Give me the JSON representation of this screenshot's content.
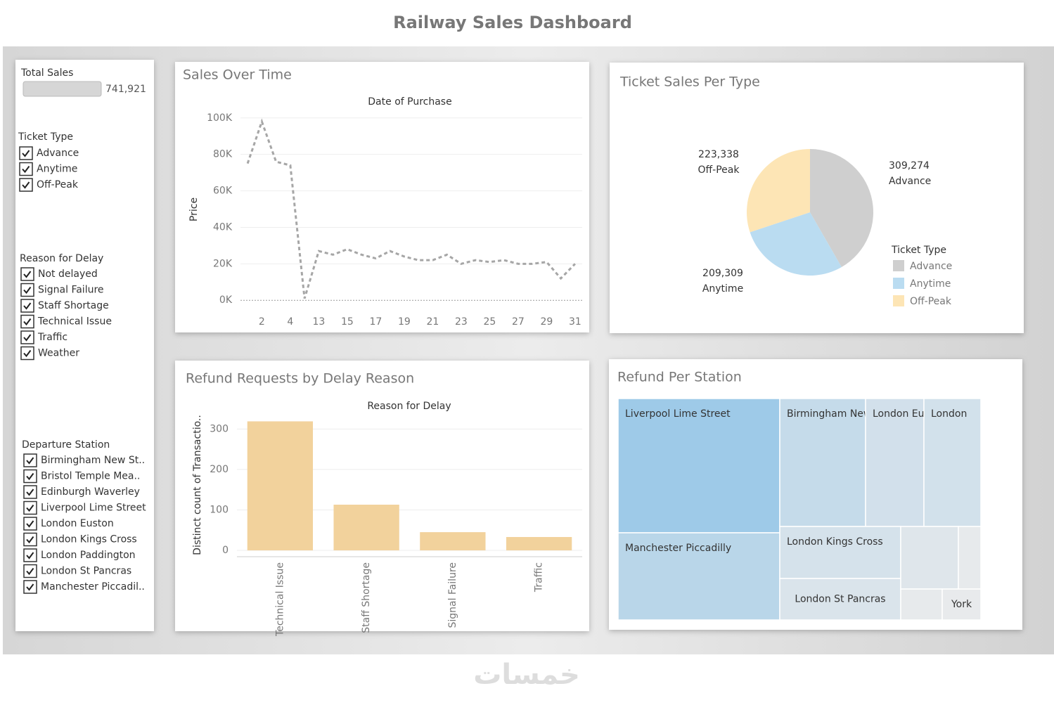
{
  "title": "Railway Sales Dashboard",
  "watermark": "خمسات",
  "filters": {
    "total_sales": {
      "label": "Total Sales",
      "value": "741,921"
    },
    "ticket_type": {
      "title": "Ticket Type",
      "items": [
        "Advance",
        "Anytime",
        "Off-Peak"
      ]
    },
    "reason_for_delay": {
      "title": "Reason for Delay",
      "items": [
        "Not delayed",
        "Signal Failure",
        "Staff Shortage",
        "Technical Issue",
        "Traffic",
        "Weather"
      ]
    },
    "departure_station": {
      "title": "Departure Station",
      "items": [
        "Birmingham New St..",
        "Bristol Temple Mea..",
        "Edinburgh Waverley",
        "Liverpool Lime Street",
        "London Euston",
        "London Kings Cross",
        "London Paddington",
        "London St Pancras",
        "Manchester Piccadil.."
      ]
    }
  },
  "chart_data": [
    {
      "type": "line",
      "title": "Sales Over Time",
      "subtitle": "Date of Purchase",
      "y_label": "Price",
      "categories": [
        null,
        2,
        null,
        4,
        null,
        13,
        null,
        15,
        null,
        17,
        null,
        19,
        null,
        21,
        null,
        23,
        null,
        25,
        null,
        27,
        null,
        29,
        null,
        31
      ],
      "series": [
        {
          "name": "Price",
          "color": "#a6a6a6",
          "values": [
            75000,
            98000,
            76000,
            74000,
            1000,
            27000,
            25000,
            28000,
            25000,
            23000,
            27000,
            24000,
            22000,
            22000,
            25000,
            20000,
            22000,
            21000,
            22000,
            20000,
            20000,
            21000,
            12000,
            20000
          ]
        }
      ],
      "ylim": [
        -3000,
        103000
      ],
      "yticks": [
        {
          "value": 0,
          "label": "0K"
        },
        {
          "value": 20000,
          "label": "20K"
        },
        {
          "value": 40000,
          "label": "40K"
        },
        {
          "value": 60000,
          "label": "60K"
        },
        {
          "value": 80000,
          "label": "80K"
        },
        {
          "value": 100000,
          "label": "100K"
        }
      ],
      "grid": true
    },
    {
      "type": "pie",
      "title": "Ticket Sales Per Type",
      "legend_title": "Ticket Type",
      "categories": [
        "Advance",
        "Anytime",
        "Off-Peak"
      ],
      "values": [
        309274,
        209309,
        223338
      ],
      "value_labels": [
        "309,274",
        "209,309",
        "223,338"
      ],
      "colors": [
        "#cfcfcf",
        "#badcf1",
        "#fde5b5"
      ]
    },
    {
      "type": "bar",
      "title": "Refund Requests by Delay Reason",
      "subtitle": "Reason for Delay",
      "y_label": "Distinct count of Transactio..",
      "categories": [
        "Technical Issue",
        "Staff Shortage",
        "Signal Failure",
        "Traffic"
      ],
      "values": [
        319,
        113,
        45,
        33
      ],
      "color": "#f2d29c",
      "ylim": [
        0,
        325
      ],
      "yticks": [
        0,
        100,
        200,
        300
      ],
      "grid": true
    },
    {
      "type": "treemap",
      "title": "Refund Per Station",
      "categories": [
        "Liverpool Lime Street",
        "Manchester Piccadilly",
        "Birmingham New Street",
        "London Euston",
        "London",
        "London Kings Cross",
        "London St Pancras",
        null,
        null,
        null,
        "York"
      ],
      "values": [
        439,
        285,
        222,
        149,
        147,
        127,
        101,
        73,
        28,
        26,
        24
      ],
      "color": "#9ecae8"
    }
  ]
}
